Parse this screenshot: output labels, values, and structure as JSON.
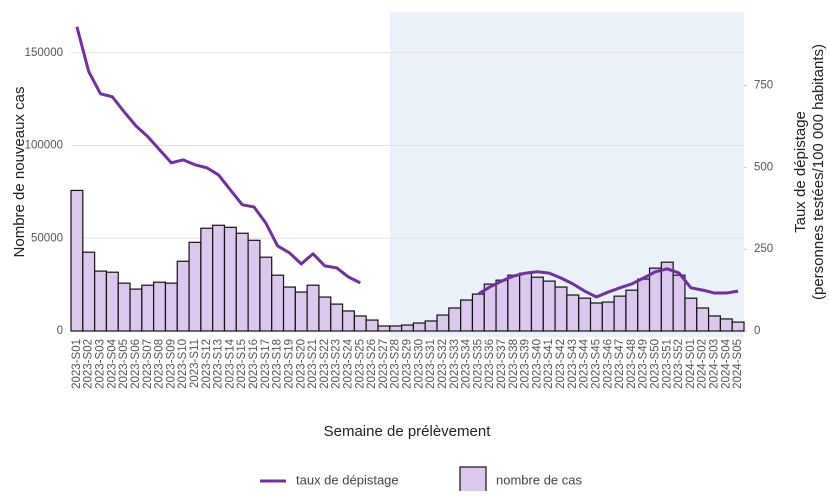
{
  "chart_data": {
    "type": "bar-line",
    "xlabel": "Semaine de prélèvement",
    "ylabel": "Nombre de nouveaux cas",
    "y2label": [
      "Taux de dépistage",
      "(personnes testées/100 000 habitants)"
    ],
    "categories": [
      "2023-S01",
      "2023-S02",
      "2023-S03",
      "2023-S04",
      "2023-S05",
      "2023-S06",
      "2023-S07",
      "2023-S08",
      "2023-S09",
      "2023-S10",
      "2023-S11",
      "2023-S12",
      "2023-S13",
      "2023-S14",
      "2023-S15",
      "2023-S16",
      "2023-S17",
      "2023-S18",
      "2023-S19",
      "2023-S20",
      "2023-S21",
      "2023-S22",
      "2023-S23",
      "2023-S24",
      "2023-S25",
      "2023-S26",
      "2023-S27",
      "2023-S28",
      "2023-S29",
      "2023-S30",
      "2023-S31",
      "2023-S32",
      "2023-S33",
      "2023-S34",
      "2023-S35",
      "2023-S36",
      "2023-S37",
      "2023-S38",
      "2023-S39",
      "2023-S40",
      "2023-S41",
      "2023-S42",
      "2023-S43",
      "2023-S44",
      "2023-S45",
      "2023-S46",
      "2023-S47",
      "2023-S48",
      "2023-S49",
      "2023-S50",
      "2023-S51",
      "2023-S52",
      "2024-S01",
      "2024-S02",
      "2024-S03",
      "2024-S04",
      "2024-S05"
    ],
    "series": [
      {
        "name": "nombre de cas",
        "kind": "bar",
        "color": "#dcc8ee",
        "axis": "y",
        "values": [
          75800,
          42500,
          32300,
          31700,
          25800,
          22600,
          24700,
          26300,
          25800,
          37600,
          47800,
          55400,
          57000,
          55900,
          52700,
          48900,
          39800,
          30100,
          23700,
          21000,
          24700,
          18300,
          14500,
          10800,
          8100,
          5900,
          2700,
          2700,
          3200,
          4300,
          5400,
          8600,
          12400,
          16700,
          19900,
          25300,
          27400,
          30100,
          31200,
          29000,
          26900,
          23700,
          19400,
          17700,
          15100,
          15600,
          18800,
          22000,
          28000,
          33900,
          37100,
          30100,
          17700,
          12400,
          8100,
          6500,
          4800
        ]
      },
      {
        "name": "taux de dépistage",
        "kind": "line",
        "color": "#7030a0",
        "axis": "y2",
        "values": [
          930,
          793,
          725,
          716,
          670,
          627,
          594,
          554,
          514,
          523,
          508,
          499,
          477,
          431,
          386,
          379,
          330,
          260,
          239,
          205,
          236,
          199,
          193,
          165,
          147,
          null,
          null,
          null,
          null,
          null,
          null,
          null,
          null,
          null,
          113,
          135,
          153,
          168,
          177,
          181,
          177,
          162,
          144,
          122,
          104,
          119,
          132,
          144,
          162,
          181,
          190,
          177,
          132,
          125,
          116,
          116,
          122
        ]
      }
    ],
    "ylim": [
      0,
      172000
    ],
    "yticks": [
      0,
      50000,
      100000,
      150000
    ],
    "y2lim": [
      0,
      975
    ],
    "y2ticks": [
      0,
      250,
      500,
      750
    ],
    "grid": true,
    "highlight": {
      "from": "2023-S28",
      "to": "2024-S05",
      "color": "#eaf1f9"
    },
    "legend": "bottom"
  }
}
